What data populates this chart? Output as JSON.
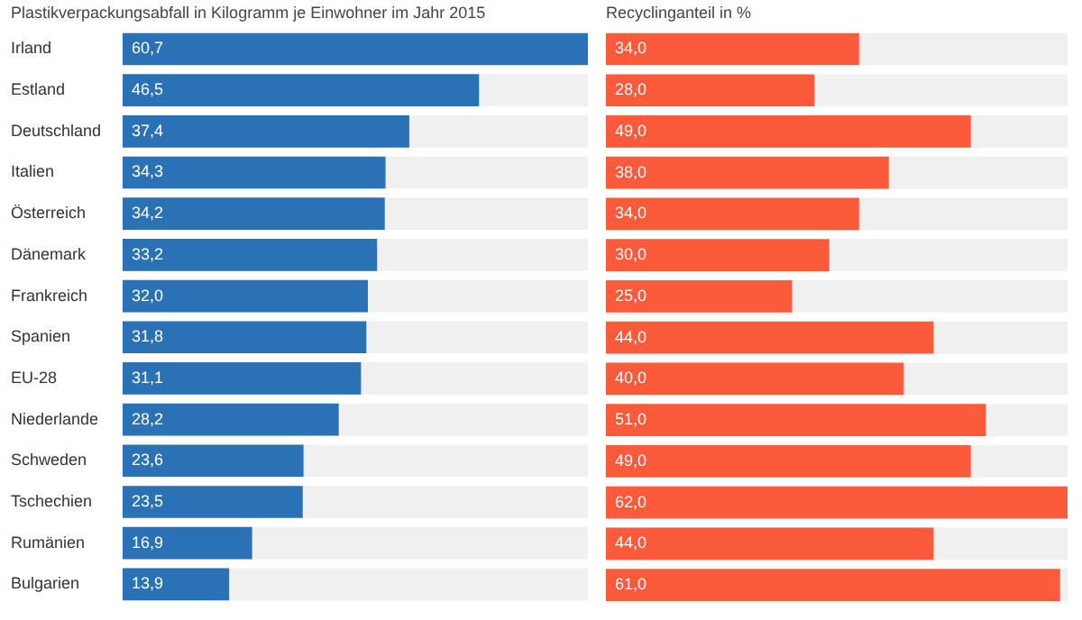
{
  "chart_data": [
    {
      "type": "bar",
      "orientation": "horizontal",
      "title": "Plastikverpackungsabfall in Kilogramm je Einwohner im Jahr 2015",
      "categories": [
        "Irland",
        "Estland",
        "Deutschland",
        "Italien",
        "Österreich",
        "Dänemark",
        "Frankreich",
        "Spanien",
        "EU-28",
        "Niederlande",
        "Schweden",
        "Tschechien",
        "Rumänien",
        "Bulgarien"
      ],
      "values": [
        60.7,
        46.5,
        37.4,
        34.3,
        34.2,
        33.2,
        32.0,
        31.8,
        31.1,
        28.2,
        23.6,
        23.5,
        16.9,
        13.9
      ],
      "value_labels": [
        "60,7",
        "46,5",
        "37,4",
        "34,3",
        "34,2",
        "33,2",
        "32,0",
        "31,8",
        "31,1",
        "28,2",
        "23,6",
        "23,5",
        "16,9",
        "13,9"
      ],
      "color": "#2a72b5",
      "tick_labels": "y"
    },
    {
      "type": "bar",
      "orientation": "horizontal",
      "title": "Recyclinganteil in %",
      "categories": [
        null,
        null,
        null,
        null,
        null,
        null,
        null,
        null,
        null,
        null,
        null,
        null,
        null,
        null
      ],
      "values": [
        34,
        28,
        49,
        38,
        34,
        30,
        25,
        44,
        40,
        51,
        49,
        62,
        44,
        61
      ],
      "value_labels": [
        "34,0",
        "28,0",
        "49,0",
        "38,0",
        "34,0",
        "30,0",
        "25,0",
        "44,0",
        "40,0",
        "51,0",
        "49,0",
        "62,0",
        "44,0",
        "61,0"
      ],
      "color": "#fb5b3b",
      "tick_labels": false
    }
  ]
}
